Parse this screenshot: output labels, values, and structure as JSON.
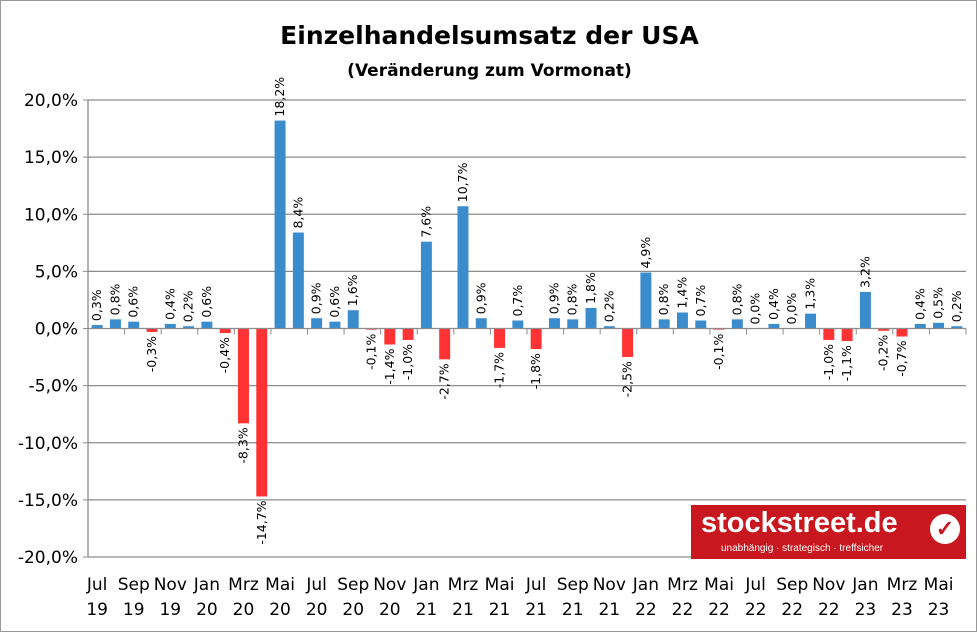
{
  "chart_data": {
    "type": "bar",
    "title": "Einzelhandelsumsatz der USA",
    "subtitle": "(Veränderung zum Vormonat)",
    "ylim": [
      -20,
      20
    ],
    "yticks": [
      "-20,0%",
      "-15,0%",
      "-10,0%",
      "-5,0%",
      "0,0%",
      "5,0%",
      "10,0%",
      "15,0%",
      "20,0%"
    ],
    "grid": true,
    "colors": {
      "positive": "#3a8ccd",
      "negative": "#ff3333"
    },
    "xtick_labels": [
      [
        "Jul",
        "19"
      ],
      [
        "Sep",
        "19"
      ],
      [
        "Nov",
        "19"
      ],
      [
        "Jan",
        "20"
      ],
      [
        "Mrz",
        "20"
      ],
      [
        "Mai",
        "20"
      ],
      [
        "Jul",
        "20"
      ],
      [
        "Sep",
        "20"
      ],
      [
        "Nov",
        "20"
      ],
      [
        "Jan",
        "21"
      ],
      [
        "Mrz",
        "21"
      ],
      [
        "Mai",
        "21"
      ],
      [
        "Jul",
        "21"
      ],
      [
        "Sep",
        "21"
      ],
      [
        "Nov",
        "21"
      ],
      [
        "Jan",
        "22"
      ],
      [
        "Mrz",
        "22"
      ],
      [
        "Mai",
        "22"
      ],
      [
        "Jul",
        "22"
      ],
      [
        "Sep",
        "22"
      ],
      [
        "Nov",
        "22"
      ],
      [
        "Jan",
        "23"
      ],
      [
        "Mrz",
        "23"
      ],
      [
        "Mai",
        "23"
      ]
    ],
    "values": [
      0.3,
      0.8,
      0.6,
      -0.3,
      0.4,
      0.2,
      0.6,
      -0.4,
      -8.3,
      -14.7,
      18.2,
      8.4,
      0.9,
      0.6,
      1.6,
      -0.1,
      -1.4,
      -1.0,
      7.6,
      -2.7,
      10.7,
      0.9,
      -1.7,
      0.7,
      -1.8,
      0.9,
      0.8,
      1.8,
      0.2,
      -2.5,
      4.9,
      0.8,
      1.4,
      0.7,
      -0.1,
      0.8,
      0.0,
      0.4,
      0.0,
      1.3,
      -1.0,
      -1.1,
      3.2,
      -0.2,
      -0.7,
      0.4,
      0.5,
      0.2
    ],
    "data_labels": [
      "0,3%",
      "0,8%",
      "0,6%",
      "-0,3%",
      "0,4%",
      "0,2%",
      "0,6%",
      "-0,4%",
      "-8,3%",
      "-14,7%",
      "18,2%",
      "8,4%",
      "0,9%",
      "0,6%",
      "1,6%",
      "-0,1%",
      "-1,4%",
      "-1,0%",
      "7,6%",
      "-2,7%",
      "10,7%",
      "0,9%",
      "-1,7%",
      "0,7%",
      "-1,8%",
      "0,9%",
      "0,8%",
      "1,8%",
      "0,2%",
      "-2,5%",
      "4,9%",
      "0,8%",
      "1,4%",
      "0,7%",
      "-0,1%",
      "0,8%",
      "0,0%",
      "0,4%",
      "0,0%",
      "1,3%",
      "-1,0%",
      "-1,1%",
      "3,2%",
      "-0,2%",
      "-0,7%",
      "0,4%",
      "0,5%",
      "0,2%"
    ]
  },
  "logo": {
    "name": "stockstreet.de",
    "tagline": "unabhängig · strategisch · treffsicher"
  }
}
